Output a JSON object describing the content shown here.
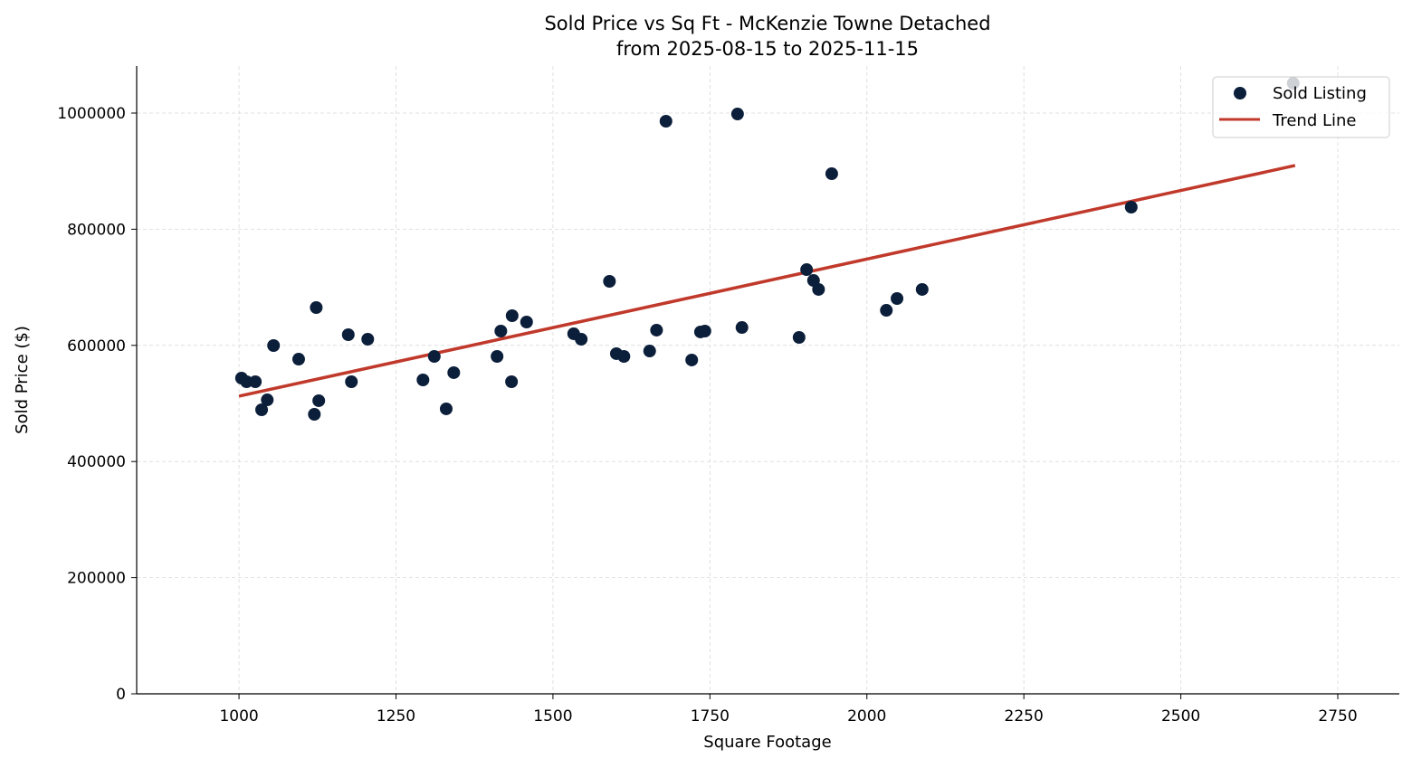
{
  "chart_data": {
    "type": "scatter",
    "title": "Sold Price vs Sq Ft - McKenzie Towne Detached",
    "subtitle": "from 2025-08-15 to 2025-11-15",
    "xlabel": "Square Footage",
    "ylabel": "Sold Price ($)",
    "xlim": [
      837,
      2848
    ],
    "ylim": [
      0,
      1081000
    ],
    "xticks": [
      1000,
      1250,
      1500,
      1750,
      2000,
      2250,
      2500,
      2750
    ],
    "yticks": [
      0,
      200000,
      400000,
      600000,
      800000,
      1000000
    ],
    "grid": true,
    "legend_placement": "top-right",
    "colors": {
      "points": "#0b1e3a",
      "trend": "#c0392b",
      "grid": "#d9d9d9"
    },
    "series": [
      {
        "name": "Sold Listing",
        "type": "scatter",
        "points": [
          [
            1004,
            543600
          ],
          [
            1012,
            537400
          ],
          [
            1026,
            537400
          ],
          [
            1036,
            489100
          ],
          [
            1045,
            506200
          ],
          [
            1055,
            599700
          ],
          [
            1095,
            576300
          ],
          [
            1120,
            481300
          ],
          [
            1123,
            665100
          ],
          [
            1127,
            504700
          ],
          [
            1174,
            618400
          ],
          [
            1179,
            537400
          ],
          [
            1205,
            610600
          ],
          [
            1293,
            540500
          ],
          [
            1311,
            581000
          ],
          [
            1330,
            490700
          ],
          [
            1342,
            553000
          ],
          [
            1411,
            581000
          ],
          [
            1417,
            624600
          ],
          [
            1434,
            537400
          ],
          [
            1435,
            651100
          ],
          [
            1458,
            640200
          ],
          [
            1533,
            620000
          ],
          [
            1545,
            610600
          ],
          [
            1590,
            710300
          ],
          [
            1601,
            585700
          ],
          [
            1613,
            581000
          ],
          [
            1654,
            590300
          ],
          [
            1665,
            626200
          ],
          [
            1680,
            986000
          ],
          [
            1721,
            574800
          ],
          [
            1735,
            623100
          ],
          [
            1742,
            624600
          ],
          [
            1794,
            998400
          ],
          [
            1801,
            630800
          ],
          [
            1892,
            613700
          ],
          [
            1904,
            730500
          ],
          [
            1915,
            711800
          ],
          [
            1923,
            696300
          ],
          [
            1944,
            895600
          ],
          [
            2031,
            660400
          ],
          [
            2048,
            680700
          ],
          [
            2088,
            696300
          ],
          [
            2421,
            838000
          ],
          [
            2679,
            1051400
          ]
        ]
      },
      {
        "name": "Trend Line",
        "type": "line",
        "points": [
          [
            1000,
            512500
          ],
          [
            2682,
            909700
          ]
        ]
      }
    ]
  }
}
